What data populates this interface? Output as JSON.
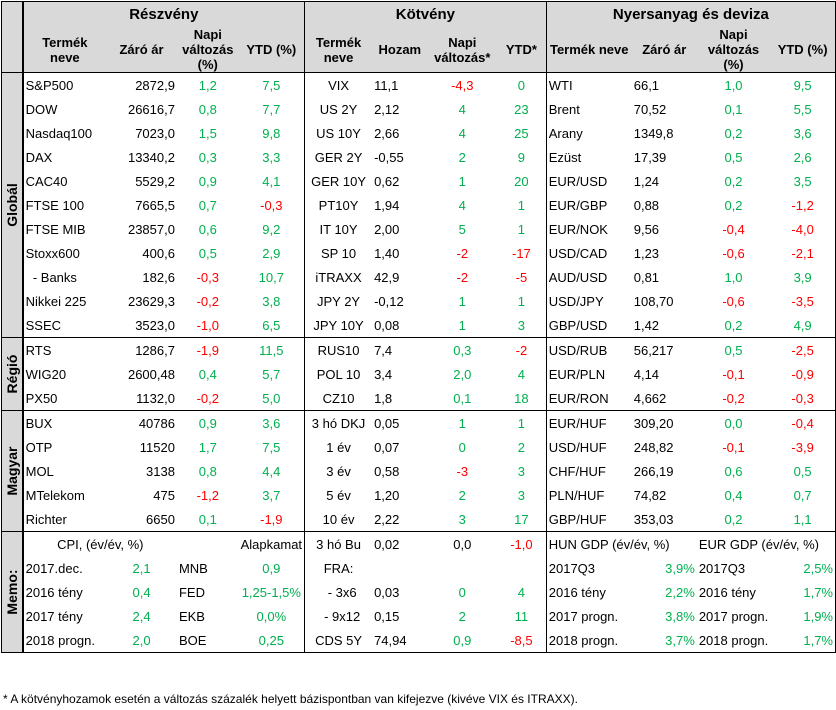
{
  "headers": {
    "sections": [
      "Részvény",
      "Kötvény",
      "Nyersanyag és deviza"
    ],
    "equity_cols": [
      "Termék neve",
      "Záró ár",
      "Napi változás (%)",
      "YTD (%)"
    ],
    "bond_cols": [
      "Termék neve",
      "Hozam",
      "Napi változás*",
      "YTD*"
    ],
    "commodity_cols": [
      "Termék neve",
      "Záró ár",
      "Napi változás (%)",
      "YTD (%)"
    ]
  },
  "groups": [
    {
      "label": "Globál",
      "rows": [
        {
          "e": [
            "S&P500",
            "2872,9",
            "1,2",
            "7,5"
          ],
          "b": [
            "VIX",
            "11,1",
            "-4,3",
            "0"
          ],
          "c": [
            "WTI",
            "66,1",
            "1,0",
            "9,5"
          ]
        },
        {
          "e": [
            "DOW",
            "26616,7",
            "0,8",
            "7,7"
          ],
          "b": [
            "US 2Y",
            "2,12",
            "4",
            "23"
          ],
          "c": [
            "Brent",
            "70,52",
            "0,1",
            "5,5"
          ]
        },
        {
          "e": [
            "Nasdaq100",
            "7023,0",
            "1,5",
            "9,8"
          ],
          "b": [
            "US 10Y",
            "2,66",
            "4",
            "25"
          ],
          "c": [
            "Arany",
            "1349,8",
            "0,2",
            "3,6"
          ]
        },
        {
          "e": [
            "DAX",
            "13340,2",
            "0,3",
            "3,3"
          ],
          "b": [
            "GER 2Y",
            "-0,55",
            "2",
            "9"
          ],
          "c": [
            "Ezüst",
            "17,39",
            "0,5",
            "2,6"
          ]
        },
        {
          "e": [
            "CAC40",
            "5529,2",
            "0,9",
            "4,1"
          ],
          "b": [
            "GER 10Y",
            "0,62",
            "1",
            "20"
          ],
          "c": [
            "EUR/USD",
            "1,24",
            "0,2",
            "3,5"
          ]
        },
        {
          "e": [
            "FTSE 100",
            "7665,5",
            "0,7",
            "-0,3"
          ],
          "b": [
            "PT10Y",
            "1,94",
            "4",
            "1"
          ],
          "c": [
            "EUR/GBP",
            "0,88",
            "0,2",
            "-1,2"
          ]
        },
        {
          "e": [
            "FTSE MIB",
            "23857,0",
            "0,6",
            "9,2"
          ],
          "b": [
            "IT 10Y",
            "2,00",
            "5",
            "1"
          ],
          "c": [
            "EUR/NOK",
            "9,56",
            "-0,4",
            "-4,0"
          ]
        },
        {
          "e": [
            "Stoxx600",
            "400,6",
            "0,5",
            "2,9"
          ],
          "b": [
            "SP 10",
            "1,40",
            "-2",
            "-17"
          ],
          "c": [
            "USD/CAD",
            "1,23",
            "-0,6",
            "-2,1"
          ]
        },
        {
          "e": [
            "  - Banks",
            "182,6",
            "-0,3",
            "10,7"
          ],
          "b": [
            "iTRAXX",
            "42,9",
            "-2",
            "-5"
          ],
          "c": [
            "AUD/USD",
            "0,81",
            "1,0",
            "3,9"
          ]
        },
        {
          "e": [
            "Nikkei 225",
            "23629,3",
            "-0,2",
            "3,8"
          ],
          "b": [
            "JPY 2Y",
            "-0,12",
            "1",
            "1"
          ],
          "c": [
            "USD/JPY",
            "108,70",
            "-0,6",
            "-3,5"
          ]
        },
        {
          "e": [
            "SSEC",
            "3523,0",
            "-1,0",
            "6,5"
          ],
          "b": [
            "JPY 10Y",
            "0,08",
            "1",
            "3"
          ],
          "c": [
            "GBP/USD",
            "1,42",
            "0,2",
            "4,9"
          ]
        }
      ]
    },
    {
      "label": "Régió",
      "rows": [
        {
          "e": [
            "RTS",
            "1286,7",
            "-1,9",
            "11,5"
          ],
          "b": [
            "RUS10",
            "7,4",
            "0,3",
            "-2"
          ],
          "c": [
            "USD/RUB",
            "56,217",
            "0,5",
            "-2,5"
          ]
        },
        {
          "e": [
            "WIG20",
            "2600,48",
            "0,4",
            "5,7"
          ],
          "b": [
            "POL 10",
            "3,4",
            "2,0",
            "4"
          ],
          "c": [
            "EUR/PLN",
            "4,14",
            "-0,1",
            "-0,9"
          ]
        },
        {
          "e": [
            "PX50",
            "1132,0",
            "-0,2",
            "5,0"
          ],
          "b": [
            "CZ10",
            "1,8",
            "0,1",
            "18"
          ],
          "c": [
            "EUR/RON",
            "4,662",
            "-0,2",
            "-0,3"
          ]
        }
      ]
    },
    {
      "label": "Magyar",
      "rows": [
        {
          "e": [
            "BUX",
            "40786",
            "0,9",
            "3,6"
          ],
          "b": [
            "3 hó DKJ",
            "0,05",
            "1",
            "1"
          ],
          "c": [
            "EUR/HUF",
            "309,20",
            "0,0",
            "-0,4"
          ]
        },
        {
          "e": [
            "OTP",
            "11520",
            "1,7",
            "7,5"
          ],
          "b": [
            "1 év",
            "0,07",
            "0",
            "2"
          ],
          "c": [
            "USD/HUF",
            "248,82",
            "-0,1",
            "-3,9"
          ]
        },
        {
          "e": [
            "MOL",
            "3138",
            "0,8",
            "4,4"
          ],
          "b": [
            "3 év",
            "0,58",
            "-3",
            "3"
          ],
          "c": [
            "CHF/HUF",
            "266,19",
            "0,6",
            "0,5"
          ]
        },
        {
          "e": [
            "MTelekom",
            "475",
            "-1,2",
            "3,7"
          ],
          "b": [
            "5 év",
            "1,20",
            "2",
            "3"
          ],
          "c": [
            "PLN/HUF",
            "74,82",
            "0,4",
            "0,7"
          ]
        },
        {
          "e": [
            "Richter",
            "6650",
            "0,1",
            "-1,9"
          ],
          "b": [
            "10 év",
            "2,22",
            "3",
            "17"
          ],
          "c": [
            "GBP/HUF",
            "353,03",
            "0,2",
            "1,1"
          ]
        }
      ]
    }
  ],
  "memo": {
    "label": "Memo:",
    "cpi_header": "CPI, (év/év, %)",
    "cpi_rows": [
      [
        "2017.dec.",
        "2,1"
      ],
      [
        "2016 tény",
        "0,4"
      ],
      [
        "2017 tény",
        "2,4"
      ],
      [
        "2018 progn.",
        "2,0"
      ]
    ],
    "rate_header": "Alapkamat",
    "rate_rows": [
      [
        "MNB",
        "0,9"
      ],
      [
        "FED",
        "1,25-1,5%"
      ],
      [
        "EKB",
        "0,0%"
      ],
      [
        "BOE",
        "0,25"
      ]
    ],
    "bond_rows": [
      [
        "3 hó Bu",
        "0,02",
        "0,0",
        "-1,0"
      ],
      [
        "FRA:",
        "",
        "",
        ""
      ],
      [
        "  - 3x6",
        "0,03",
        "0",
        "4"
      ],
      [
        "  - 9x12",
        "0,15",
        "2",
        "11"
      ],
      [
        "CDS 5Y",
        "74,94",
        "0,9",
        "-8,5"
      ]
    ],
    "hun_header": "HUN GDP (év/év, %)",
    "hun_rows": [
      [
        "2017Q3",
        "3,9%"
      ],
      [
        "2016 tény",
        "2,2%"
      ],
      [
        "2017 progn.",
        "3,8%"
      ],
      [
        "2018 progn.",
        "3,7%"
      ]
    ],
    "eur_header": "EUR GDP (év/év, %)",
    "eur_rows": [
      [
        "2017Q3",
        "2,5%"
      ],
      [
        "2016 tény",
        "1,7%"
      ],
      [
        "2017 progn.",
        "1,9%"
      ],
      [
        "2018 progn.",
        "1,7%"
      ]
    ]
  },
  "footnote": "* A kötvényhozamok esetén a változás százalék helyett bázispontban van kifejezve (kivéve VIX és ITRAXX).",
  "colors": {
    "positive": "#00b050",
    "negative": "#ff0000",
    "header_bg": "#d9d9d9"
  }
}
